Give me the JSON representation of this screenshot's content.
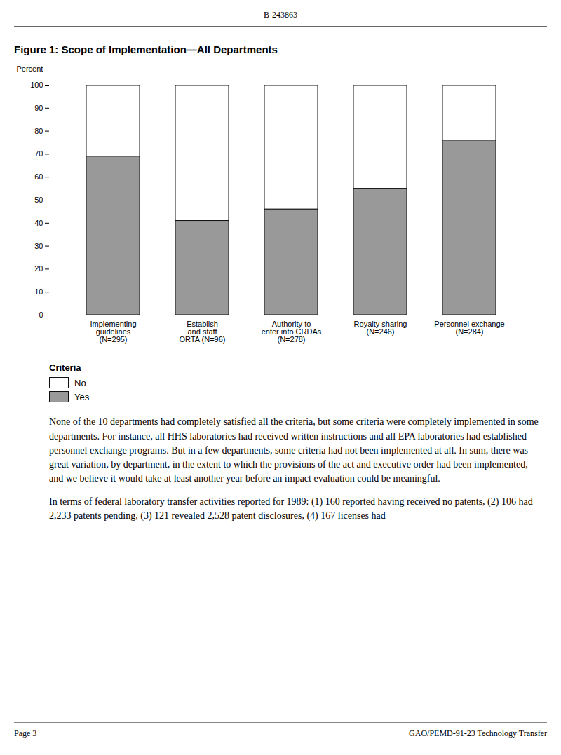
{
  "chart_data": {
    "type": "bar",
    "stacked": true,
    "title": "Figure 1: Scope of Implementation—All Departments",
    "ylabel": "Percent",
    "categories": [
      "Implementing\nguidelines\n(N=295)",
      "Establish\nand staff\nORTA (N=96)",
      "Authority to\nenter into CRDAs\n(N=278)",
      "Royalty sharing\n(N=246)",
      "Personnel exchange\n(N=284)"
    ],
    "series": [
      {
        "name": "Yes",
        "color": "#999999",
        "values": [
          69,
          41,
          46,
          55,
          76
        ]
      },
      {
        "name": "No",
        "color": "#ffffff",
        "values": [
          31,
          59,
          54,
          45,
          24
        ]
      }
    ],
    "ylim": [
      0,
      100
    ],
    "yticks": [
      0,
      10,
      20,
      30,
      40,
      50,
      60,
      70,
      80,
      90,
      100
    ],
    "grid": false,
    "legend": "bottom",
    "legend_title": "Criteria",
    "annotations": {
      "header": "B-243863",
      "body": [
        "None of the 10 departments had completely satisfied all the criteria, but some criteria were completely implemented in some departments. For instance, all HHS laboratories had received written instructions and all EPA laboratories had established personnel exchange programs. But in a few departments, some criteria had not been implemented at all. In sum, there was great variation, by department, in the extent to which the provisions of the act and executive order had been implemented, and we believe it would take at least another year before an impact evaluation could be meaningful.",
        "In terms of federal laboratory transfer activities reported for 1989: (1) 160 reported having received no patents, (2) 106 had 2,233 patents pending, (3) 121 revealed 2,528 patent disclosures, (4) 167 licenses had"
      ],
      "footer_left": "Page 3",
      "footer_right": "GAO/PEMD-91-23 Technology Transfer"
    }
  }
}
